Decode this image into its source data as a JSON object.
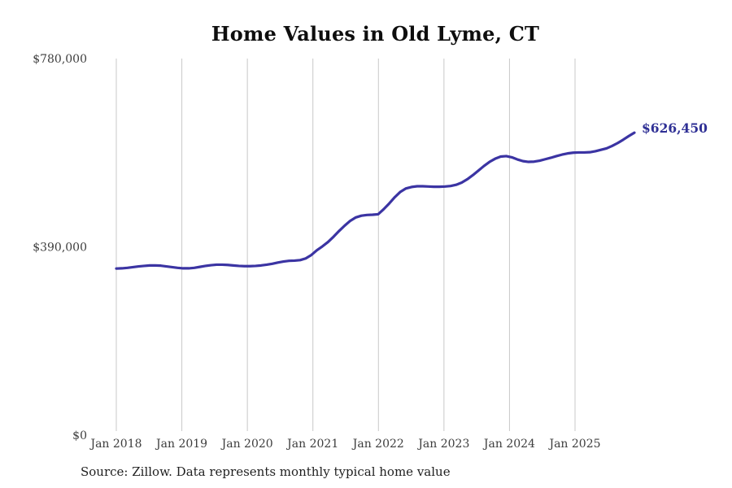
{
  "chart_data": {
    "type": "line",
    "title": "Home Values in Old Lyme, CT",
    "source": "Source: Zillow. Data represents monthly typical home value",
    "end_label": "$626,450",
    "grid": "vertical-only",
    "legend": "none",
    "ylim": [
      0,
      780000
    ],
    "y_ticks": [
      {
        "value": 0,
        "label": "$0"
      },
      {
        "value": 390000,
        "label": "$390,000"
      },
      {
        "value": 780000,
        "label": "$780,000"
      }
    ],
    "x_ticks": [
      "Jan 2018",
      "Jan 2019",
      "Jan 2020",
      "Jan 2021",
      "Jan 2022",
      "Jan 2023",
      "Jan 2024",
      "Jan 2025"
    ],
    "series": [
      {
        "name": "Monthly typical home value",
        "start_month": "2018-01",
        "end_month": "2025-10",
        "values": [
          345000,
          345500,
          346500,
          348000,
          349500,
          350500,
          351500,
          351500,
          351000,
          349500,
          348000,
          346500,
          345500,
          345500,
          346500,
          348500,
          350500,
          352000,
          353000,
          353000,
          352500,
          351500,
          350500,
          350000,
          350000,
          350500,
          351500,
          353000,
          355000,
          357500,
          359500,
          361000,
          361500,
          362500,
          366000,
          373000,
          383000,
          391000,
          400000,
          411000,
          423000,
          434000,
          444000,
          451000,
          454500,
          456000,
          456500,
          457500,
          468000,
          480000,
          493000,
          504000,
          511000,
          514000,
          515500,
          515500,
          515000,
          514500,
          514500,
          515000,
          516000,
          518500,
          523000,
          530000,
          538500,
          548000,
          557500,
          566000,
          572500,
          577000,
          578000,
          575500,
          571000,
          567500,
          566000,
          566500,
          568500,
          571500,
          574500,
          578000,
          581000,
          583500,
          585000,
          585500,
          585500,
          586000,
          588000,
          591000,
          594000,
          599000,
          605000,
          612000,
          619500,
          626450
        ]
      }
    ],
    "colors": {
      "line": "#3b34a3",
      "end_label": "#2f3095",
      "grid": "#c8c8c8",
      "axis_text": "#3d3d3d",
      "title": "#0e0e0e",
      "source_text": "#1f1f1f",
      "background": "#ffffff"
    }
  }
}
